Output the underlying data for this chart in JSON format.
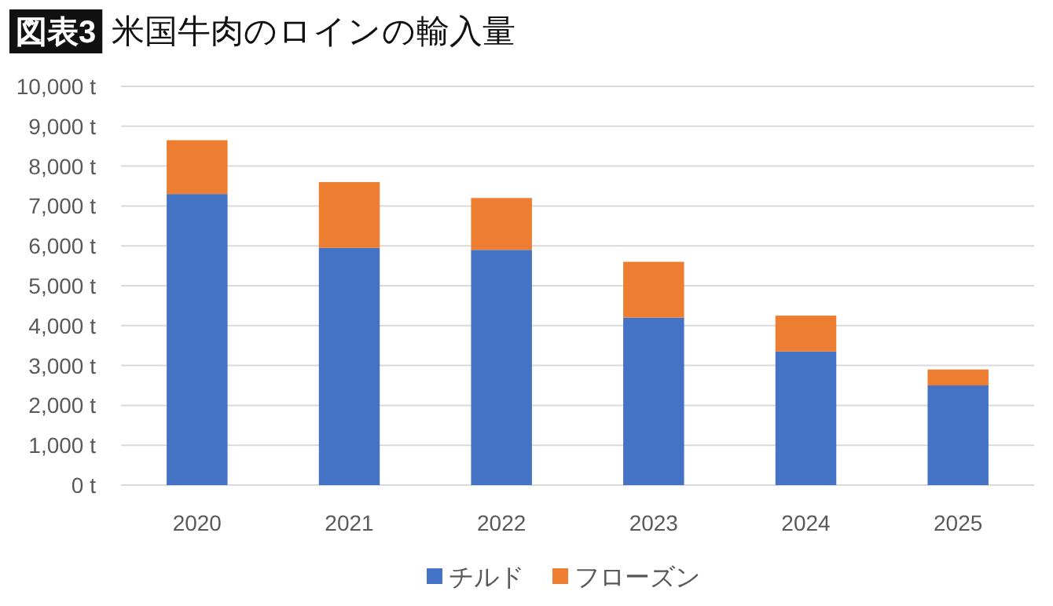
{
  "chart_data": {
    "type": "bar",
    "title": "米国牛肉のロインの輸入量",
    "annotations": [
      "図表3"
    ],
    "categories": [
      "2020",
      "2021",
      "2022",
      "2023",
      "2024",
      "2025"
    ],
    "stacked": true,
    "series": [
      {
        "name": "チルド",
        "color": "#4472c4",
        "values": [
          7300,
          5950,
          5900,
          4200,
          3350,
          2500
        ]
      },
      {
        "name": "フローズン",
        "color": "#ed7d31",
        "values": [
          1350,
          1650,
          1300,
          1400,
          900,
          400
        ]
      }
    ],
    "ylim": [
      0,
      10000
    ],
    "yticks": [
      {
        "value": 0,
        "label": "0 t"
      },
      {
        "value": 1000,
        "label": "1,000 t"
      },
      {
        "value": 2000,
        "label": "2,000 t"
      },
      {
        "value": 3000,
        "label": "3,000 t"
      },
      {
        "value": 4000,
        "label": "4,000 t"
      },
      {
        "value": 5000,
        "label": "5,000 t"
      },
      {
        "value": 6000,
        "label": "6,000 t"
      },
      {
        "value": 7000,
        "label": "7,000 t"
      },
      {
        "value": 8000,
        "label": "8,000 t"
      },
      {
        "value": 9000,
        "label": "9,000 t"
      },
      {
        "value": 10000,
        "label": "10,000 t"
      }
    ],
    "grid": "y",
    "legend": "bottom"
  }
}
